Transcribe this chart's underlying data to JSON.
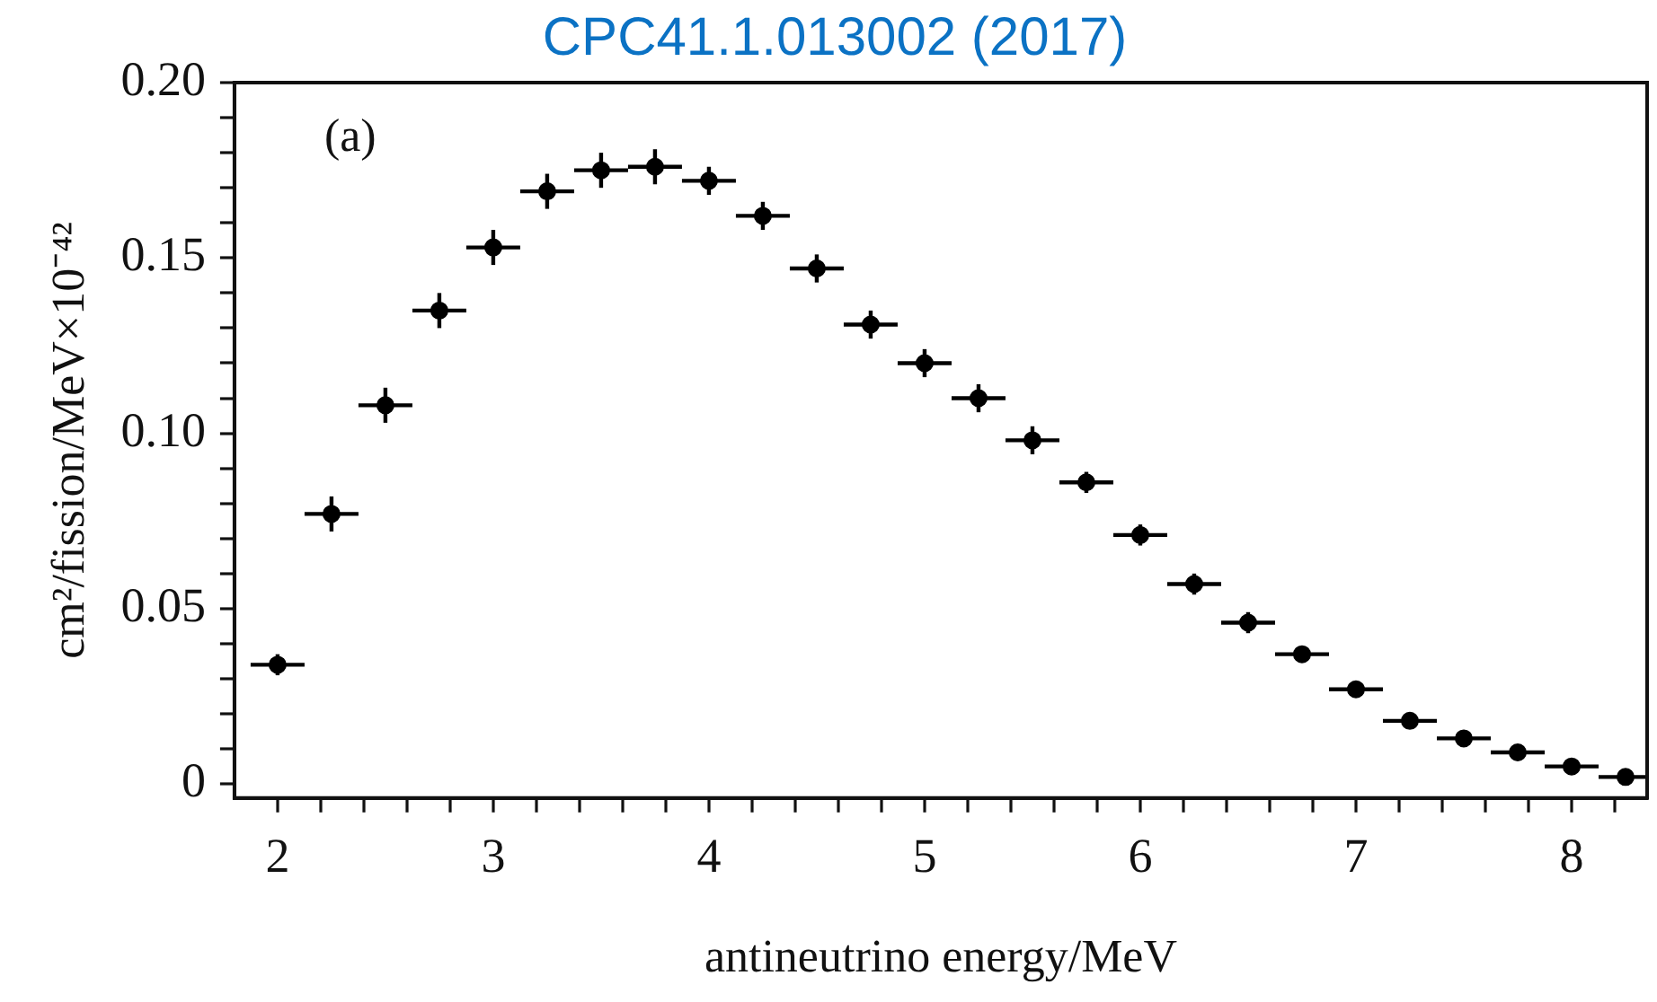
{
  "chart_data": {
    "type": "scatter",
    "title": "CPC41.1.013002 (2017)",
    "xlabel": "antineutrino energy/MeV",
    "ylabel": "cm²/fission/MeV×10⁻⁴²",
    "annotations": [
      "(a)"
    ],
    "x": [
      2.0,
      2.25,
      2.5,
      2.75,
      3.0,
      3.25,
      3.5,
      3.75,
      4.0,
      4.25,
      4.5,
      4.75,
      5.0,
      5.25,
      5.5,
      5.75,
      6.0,
      6.25,
      6.5,
      6.75,
      7.0,
      7.25,
      7.5,
      7.75,
      8.0,
      8.25
    ],
    "series": [
      {
        "color": "#000000",
        "values": [
          0.034,
          0.077,
          0.108,
          0.135,
          0.153,
          0.169,
          0.175,
          0.176,
          0.172,
          0.162,
          0.147,
          0.131,
          0.12,
          0.11,
          0.098,
          0.086,
          0.071,
          0.057,
          0.046,
          0.037,
          0.027,
          0.018,
          0.013,
          0.009,
          0.005,
          0.002
        ],
        "errors": [
          0.003,
          0.005,
          0.005,
          0.005,
          0.005,
          0.005,
          0.005,
          0.005,
          0.004,
          0.004,
          0.004,
          0.004,
          0.004,
          0.004,
          0.004,
          0.003,
          0.003,
          0.003,
          0.003,
          0.002,
          0.002,
          0.002,
          0.002,
          0.002,
          0.002,
          0.001
        ],
        "xerrors": [
          0.125,
          0.125,
          0.125,
          0.125,
          0.125,
          0.125,
          0.125,
          0.125,
          0.125,
          0.125,
          0.125,
          0.125,
          0.125,
          0.125,
          0.125,
          0.125,
          0.125,
          0.125,
          0.125,
          0.125,
          0.125,
          0.125,
          0.125,
          0.125,
          0.125,
          [
            8.125,
            8.35
          ]
        ]
      }
    ],
    "marker": "circle",
    "grid": false,
    "legend": false,
    "xlim": [
      1.8,
      8.35
    ],
    "xticks": [
      2,
      {
        "value": 2.2,
        "label": null
      },
      {
        "value": 2.4,
        "label": null
      },
      {
        "value": 2.6,
        "label": null
      },
      {
        "value": 2.8,
        "label": null
      },
      3,
      {
        "value": 3.2,
        "label": null
      },
      {
        "value": 3.4,
        "label": null
      },
      {
        "value": 3.6,
        "label": null
      },
      {
        "value": 3.8,
        "label": null
      },
      4,
      {
        "value": 4.2,
        "label": null
      },
      {
        "value": 4.4,
        "label": null
      },
      {
        "value": 4.6,
        "label": null
      },
      {
        "value": 4.8,
        "label": null
      },
      5,
      {
        "value": 5.2,
        "label": null
      },
      {
        "value": 5.4,
        "label": null
      },
      {
        "value": 5.6,
        "label": null
      },
      {
        "value": 5.8,
        "label": null
      },
      6,
      {
        "value": 6.2,
        "label": null
      },
      {
        "value": 6.4,
        "label": null
      },
      {
        "value": 6.6,
        "label": null
      },
      {
        "value": 6.8,
        "label": null
      },
      7,
      {
        "value": 7.2,
        "label": null
      },
      {
        "value": 7.4,
        "label": null
      },
      {
        "value": 7.6,
        "label": null
      },
      {
        "value": 7.8,
        "label": null
      },
      8,
      {
        "value": 8.2,
        "label": null
      }
    ],
    "ylim": [
      -0.004,
      0.2
    ],
    "yticks": [
      0,
      {
        "value": 0.01,
        "label": null
      },
      {
        "value": 0.02,
        "label": null
      },
      {
        "value": 0.03,
        "label": null
      },
      {
        "value": 0.04,
        "label": null
      },
      0.05,
      {
        "value": 0.06,
        "label": null
      },
      {
        "value": 0.07,
        "label": null
      },
      {
        "value": 0.08,
        "label": null
      },
      {
        "value": 0.09,
        "label": null
      },
      {
        "value": 0.1,
        "label": "0.10"
      },
      {
        "value": 0.11,
        "label": null
      },
      {
        "value": 0.12,
        "label": null
      },
      {
        "value": 0.13,
        "label": null
      },
      {
        "value": 0.14,
        "label": null
      },
      0.15,
      {
        "value": 0.16,
        "label": null
      },
      {
        "value": 0.17,
        "label": null
      },
      {
        "value": 0.18,
        "label": null
      },
      {
        "value": 0.19,
        "label": null
      },
      {
        "value": 0.2,
        "label": "0.20"
      }
    ]
  }
}
